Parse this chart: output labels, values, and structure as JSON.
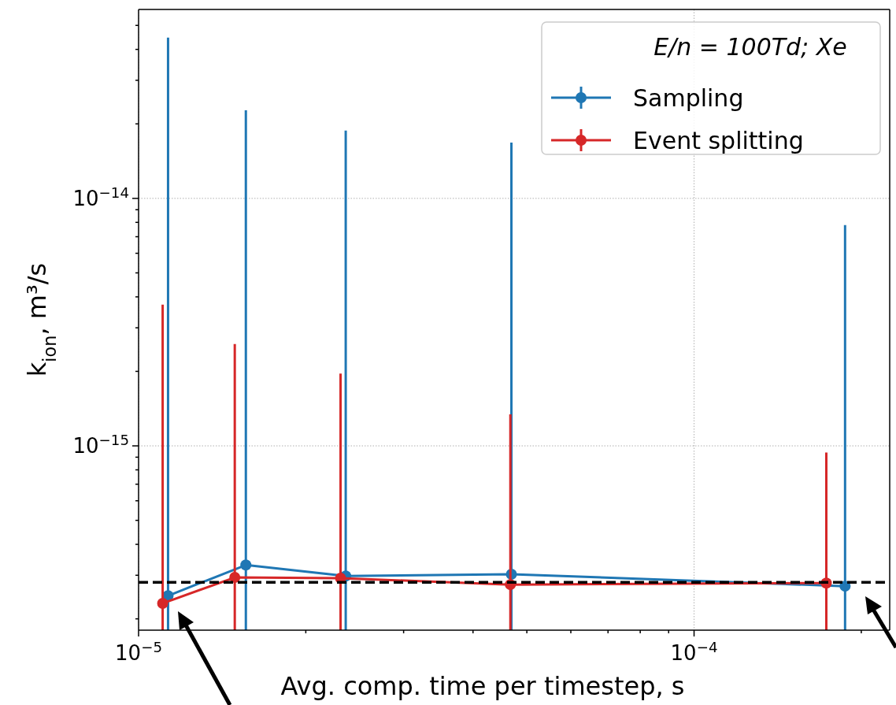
{
  "chart_data": {
    "type": "line",
    "xlabel": "Avg. comp. time per timestep, s",
    "ylabel": "k$_{ion}$, m³/s",
    "legend_title": "E/n = 100Td; Xe",
    "log": "xy",
    "grid": true,
    "legend": "top right",
    "marker": "circle",
    "line_style": "solid",
    "xlim": [
      1e-05,
      0.000225
    ],
    "ylim": [
      1.8e-16,
      5.8e-14
    ],
    "xticks": [
      {
        "value": 1e-05,
        "label": "10$^{−5}$"
      },
      {
        "value": 2e-05,
        "label": null
      },
      {
        "value": 3e-05,
        "label": null
      },
      {
        "value": 4e-05,
        "label": null
      },
      {
        "value": 5e-05,
        "label": null
      },
      {
        "value": 6e-05,
        "label": null
      },
      {
        "value": 7e-05,
        "label": null
      },
      {
        "value": 8e-05,
        "label": null
      },
      {
        "value": 9e-05,
        "label": null
      },
      {
        "value": 0.0001,
        "label": "10$^{−4}$"
      },
      {
        "value": 0.0002,
        "label": null
      }
    ],
    "yticks": [
      {
        "value": 2e-16,
        "label": null
      },
      {
        "value": 3e-16,
        "label": null
      },
      {
        "value": 4e-16,
        "label": null
      },
      {
        "value": 5e-16,
        "label": null
      },
      {
        "value": 6e-16,
        "label": null
      },
      {
        "value": 7e-16,
        "label": null
      },
      {
        "value": 8e-16,
        "label": null
      },
      {
        "value": 9e-16,
        "label": null
      },
      {
        "value": 1e-15,
        "label": "10$^{−15}$"
      },
      {
        "value": 2e-15,
        "label": null
      },
      {
        "value": 3e-15,
        "label": null
      },
      {
        "value": 4e-15,
        "label": null
      },
      {
        "value": 5e-15,
        "label": null
      },
      {
        "value": 6e-15,
        "label": null
      },
      {
        "value": 7e-15,
        "label": null
      },
      {
        "value": 8e-15,
        "label": null
      },
      {
        "value": 9e-15,
        "label": null
      },
      {
        "value": 1e-14,
        "label": "10$^{−14}$"
      },
      {
        "value": 2e-14,
        "label": null
      },
      {
        "value": 3e-14,
        "label": null
      },
      {
        "value": 4e-14,
        "label": null
      },
      {
        "value": 5e-14,
        "label": null
      }
    ],
    "series": [
      {
        "name": "Sampling",
        "color": "#1f77b4",
        "x": [
          1.13e-05,
          1.56e-05,
          2.36e-05,
          4.69e-05,
          0.000187
        ],
        "values": [
          2.48e-16,
          3.3e-16,
          2.98e-16,
          3.03e-16,
          2.71e-16
        ],
        "errors": [
          [
            1.8e-16,
            4.46e-14
          ],
          [
            1.8e-16,
            2.27e-14
          ],
          [
            1.8e-16,
            1.88e-14
          ],
          [
            1.8e-16,
            1.68e-14
          ],
          [
            1.8e-16,
            7.8e-15
          ]
        ]
      },
      {
        "name": "Event splitting",
        "color": "#d62728",
        "x": [
          1.105e-05,
          1.49e-05,
          2.31e-05,
          4.67e-05,
          0.000173
        ],
        "values": [
          2.31e-16,
          2.94e-16,
          2.92e-16,
          2.75e-16,
          2.79e-16
        ],
        "errors": [
          [
            1.8e-16,
            3.72e-15
          ],
          [
            1.8e-16,
            2.58e-15
          ],
          [
            1.8e-16,
            1.96e-15
          ],
          [
            1.8e-16,
            1.34e-15
          ],
          [
            1.8e-16,
            9.4e-16
          ]
        ]
      }
    ],
    "ref_lines": [
      {
        "axis": "y",
        "value": 2.81e-16,
        "color": "#000000",
        "line_style": "dashed"
      }
    ]
  }
}
